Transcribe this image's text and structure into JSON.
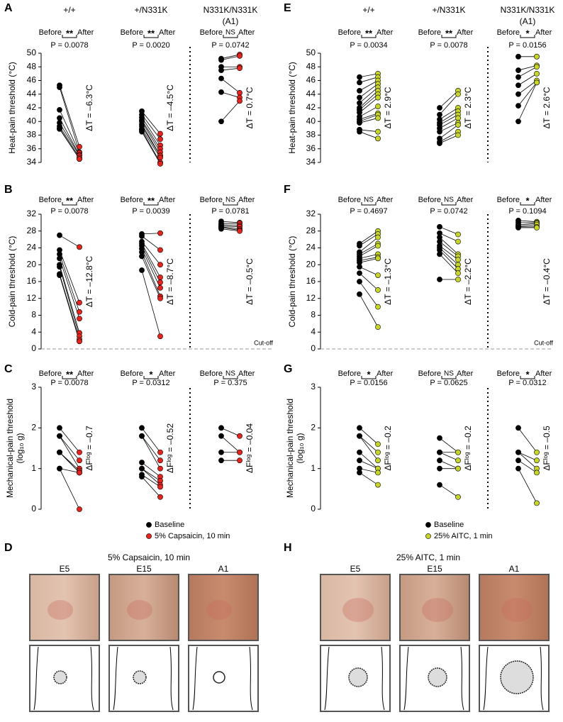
{
  "chart_data": [
    {
      "type": "paired",
      "letter": "A",
      "ylabel": [
        "Heat-pain threshold (°C)"
      ],
      "ylim": [
        34,
        50
      ],
      "yticks": [
        34,
        36,
        38,
        40,
        42,
        44,
        46,
        48,
        50
      ],
      "before_label": "Before",
      "after_label": "After",
      "before_color": "#000000",
      "after_color": "#e8231c",
      "groups": [
        {
          "header": [
            "+/+"
          ],
          "sig": "**",
          "p": "P = 0.0078",
          "delta": "ΔT = –6.3°C",
          "before": [
            45.3,
            45.0,
            41.7,
            40.5,
            39.8,
            39.3,
            39.0,
            38.9
          ],
          "after": [
            36.3,
            35.5,
            35.4,
            35.1,
            35.0,
            34.7,
            34.5,
            34.5
          ]
        },
        {
          "header": [
            "+/N331K"
          ],
          "sig": "**",
          "p": "P = 0.0020",
          "delta": "ΔT = –4.5°C",
          "before": [
            41.5,
            41.0,
            40.6,
            40.2,
            40.0,
            39.6,
            39.3,
            38.9,
            38.7,
            38.5
          ],
          "after": [
            38.2,
            37.4,
            36.5,
            36.0,
            35.5,
            35.0,
            35.0,
            34.7,
            34.0,
            33.8
          ]
        },
        {
          "header": [
            "N331K/N331K",
            "(A1)"
          ],
          "sig": "NS",
          "p": "P = 0.0742",
          "delta": "ΔT = 0.7°C",
          "before": [
            49.2,
            49.0,
            48.0,
            47.5,
            46.3,
            44.3,
            40.0
          ],
          "after": [
            49.8,
            49.6,
            48.0,
            47.8,
            44.2,
            43.5,
            43.0
          ]
        }
      ]
    },
    {
      "type": "paired",
      "letter": "B",
      "ylabel": [
        "Cold-pain threshold (°C)"
      ],
      "ylim": [
        0,
        32
      ],
      "yticks": [
        0,
        4,
        8,
        12,
        16,
        20,
        24,
        28,
        32
      ],
      "before_label": "Before",
      "after_label": "After",
      "before_color": "#000000",
      "after_color": "#e8231c",
      "cutoff": {
        "value": 0,
        "label": "Cut-off"
      },
      "groups": [
        {
          "sig": "**",
          "p": "P = 0.0078",
          "delta": "ΔT = –12.8°C",
          "before": [
            27.0,
            23.5,
            22.5,
            21.5,
            20.0,
            19.5,
            17.8,
            17.5
          ],
          "after": [
            24.2,
            11.0,
            8.8,
            7.2,
            3.8,
            3.0,
            2.2,
            1.8
          ]
        },
        {
          "sig": "**",
          "p": "P = 0.0039",
          "delta": "ΔT = –8.7°C",
          "before": [
            27.3,
            26.8,
            25.5,
            25.0,
            24.5,
            23.8,
            23.0,
            22.0,
            18.7
          ],
          "after": [
            27.5,
            23.5,
            20.0,
            17.0,
            15.8,
            14.5,
            12.5,
            12.0,
            3.0
          ]
        },
        {
          "sig": "NS",
          "p": "P = 0.0781",
          "delta": "ΔT = –0.5°C",
          "before": [
            30.3,
            29.8,
            29.5,
            29.2,
            29.0,
            28.8,
            28.5
          ],
          "after": [
            30.0,
            29.8,
            29.3,
            29.0,
            28.5,
            28.2,
            28.0
          ]
        }
      ]
    },
    {
      "type": "paired",
      "letter": "C",
      "ylabel": [
        "Mechanical-pain threshold",
        "(log₁₀ g)"
      ],
      "ylim": [
        0,
        3
      ],
      "yticks": [
        0,
        1,
        2,
        3
      ],
      "before_label": "Before",
      "after_label": "After",
      "before_color": "#000000",
      "after_color": "#e8231c",
      "legend": [
        "Baseline",
        "5% Capsaicin, 10 min"
      ],
      "groups": [
        {
          "sig": "**",
          "p": "P = 0.0078",
          "delta": "ΔFˡᵒᵍ = –0.7",
          "before": [
            2.0,
            1.8,
            1.8,
            1.4,
            1.4,
            1.4,
            1.0,
            1.0
          ],
          "after": [
            1.4,
            1.2,
            1.0,
            0.95,
            0.9,
            0.9,
            0.9,
            0.0
          ]
        },
        {
          "sig": "*",
          "p": "P = 0.0312",
          "delta": "ΔFˡᵒᵍ = –0.52",
          "before": [
            2.0,
            1.8,
            1.8,
            1.15,
            1.0,
            1.0,
            0.85,
            0.8
          ],
          "after": [
            1.4,
            1.2,
            1.0,
            0.8,
            0.7,
            0.6,
            0.55,
            0.3
          ]
        },
        {
          "sig": "NS",
          "p": "P = 0.375",
          "delta": "ΔFˡᵒᵍ = –0.04",
          "before": [
            2.0,
            1.8,
            1.4,
            1.2
          ],
          "after": [
            1.8,
            1.4,
            1.4,
            1.2
          ]
        }
      ]
    },
    {
      "type": "paired",
      "letter": "E",
      "ylabel": [
        "Heat-pain threshold (°C)"
      ],
      "ylim": [
        34,
        50
      ],
      "yticks": [
        34,
        36,
        38,
        40,
        42,
        44,
        46,
        48,
        50
      ],
      "before_label": "Before",
      "after_label": "After",
      "before_color": "#000000",
      "after_color": "#c6d42b",
      "groups": [
        {
          "header": [
            "+/+"
          ],
          "sig": "**",
          "p": "P = 0.0034",
          "delta": "ΔT = 2.9°C",
          "before": [
            46.5,
            45.7,
            44.5,
            43.5,
            42.7,
            42.0,
            41.7,
            41.3,
            40.7,
            40.3,
            40.0,
            39.8,
            38.8,
            38.5
          ],
          "after": [
            47.0,
            46.5,
            46.0,
            45.5,
            45.0,
            44.5,
            44.0,
            43.5,
            42.2,
            41.2,
            41.0,
            40.5,
            38.5,
            37.5
          ]
        },
        {
          "header": [
            "+/N331K"
          ],
          "sig": "**",
          "p": "P = 0.0078",
          "delta": "ΔT = 2.3°C",
          "before": [
            42.0,
            41.0,
            40.3,
            39.8,
            39.5,
            39.0,
            38.5,
            37.5,
            37.0,
            36.8
          ],
          "after": [
            44.5,
            44.0,
            42.0,
            41.5,
            41.0,
            40.5,
            39.8,
            39.5,
            38.5,
            38.0
          ]
        },
        {
          "header": [
            "N331K/N331K",
            "(A1)"
          ],
          "sig": "*",
          "p": "P = 0.0156",
          "delta": "ΔT = 2.6°C",
          "before": [
            49.5,
            47.5,
            46.5,
            45.3,
            44.0,
            42.3,
            40.0
          ],
          "after": [
            49.5,
            48.2,
            48.0,
            47.0,
            46.0,
            45.7,
            45.7
          ]
        }
      ]
    },
    {
      "type": "paired",
      "letter": "F",
      "ylabel": [
        "Cold-pain threshold (°C)"
      ],
      "ylim": [
        0,
        32
      ],
      "yticks": [
        0,
        4,
        8,
        12,
        16,
        20,
        24,
        28,
        32
      ],
      "before_label": "Before",
      "after_label": "After",
      "before_color": "#000000",
      "after_color": "#c6d42b",
      "cutoff": {
        "value": 0,
        "label": "Cut-off"
      },
      "groups": [
        {
          "sig": "NS",
          "p": "P = 0.4697",
          "delta": "ΔT = –1.3°C",
          "before": [
            25.0,
            24.5,
            23.0,
            22.5,
            22.0,
            21.5,
            21.0,
            20.5,
            19.5,
            18.0,
            16.0,
            13.0
          ],
          "after": [
            28.0,
            27.3,
            26.5,
            25.0,
            24.5,
            22.5,
            21.8,
            21.5,
            17.5,
            14.0,
            10.0,
            5.2
          ]
        },
        {
          "sig": "NS",
          "p": "P = 0.0742",
          "delta": "ΔT = –2.2°C",
          "before": [
            29.0,
            27.5,
            26.5,
            25.5,
            24.5,
            24.0,
            23.5,
            22.5,
            16.5
          ],
          "after": [
            27.2,
            25.5,
            22.5,
            22.0,
            21.2,
            20.0,
            19.0,
            18.0,
            16.5
          ]
        },
        {
          "sig": "*",
          "p": "P = 0.1094",
          "delta": "ΔT = –0.4°C",
          "before": [
            30.5,
            30.0,
            29.5,
            29.2,
            29.0,
            28.8
          ],
          "after": [
            30.2,
            30.0,
            29.8,
            29.5,
            29.0,
            28.8
          ]
        }
      ]
    },
    {
      "type": "paired",
      "letter": "G",
      "ylabel": [
        "Mechanical-pain threshold",
        "(log₁₀ g)"
      ],
      "ylim": [
        0,
        3
      ],
      "yticks": [
        0,
        1,
        2,
        3
      ],
      "before_label": "Before",
      "after_label": "After",
      "before_color": "#000000",
      "after_color": "#c6d42b",
      "legend": [
        "Baseline",
        "25% AITC, 1 min"
      ],
      "groups": [
        {
          "sig": "*",
          "p": "P = 0.0156",
          "delta": "ΔFˡᵒᵍ = –0.2",
          "before": [
            2.0,
            1.8,
            1.8,
            1.4,
            1.2,
            1.0,
            0.9
          ],
          "after": [
            1.6,
            1.4,
            1.2,
            1.0,
            1.0,
            0.9,
            0.6
          ]
        },
        {
          "sig": "NS",
          "p": "P = 0.0625",
          "delta": "ΔFˡᵒᵍ = –0.2",
          "before": [
            1.75,
            1.4,
            1.4,
            1.2,
            1.0,
            0.6
          ],
          "after": [
            1.4,
            1.4,
            1.2,
            1.0,
            1.0,
            0.3
          ]
        },
        {
          "sig": "*",
          "p": "P = 0.0312",
          "delta": "ΔFˡᵒᵍ = –0.5",
          "before": [
            2.0,
            1.4,
            1.4,
            1.2,
            1.0
          ],
          "after": [
            1.4,
            1.2,
            1.0,
            0.9,
            0.15
          ]
        }
      ]
    }
  ],
  "photo_panels": [
    {
      "letter": "D",
      "title": "5% Capsaicin, 10 min",
      "labels": [
        "E5",
        "E15",
        "A1"
      ]
    },
    {
      "letter": "H",
      "title": "25% AITC, 1 min",
      "labels": [
        "E5",
        "E15",
        "A1"
      ]
    }
  ]
}
